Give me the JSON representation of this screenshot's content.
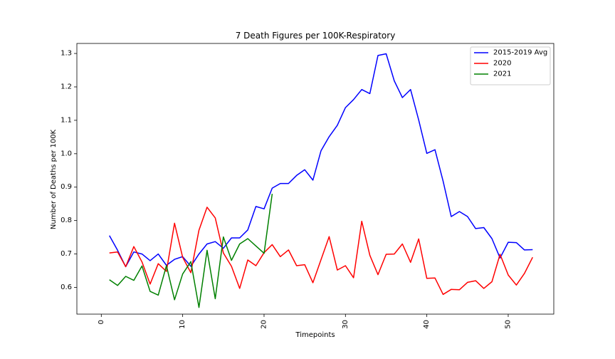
{
  "chart_data": {
    "type": "line",
    "title": "7 Death Figures per 100K-Respiratory",
    "xlabel": "Timepoints",
    "ylabel": "Number of Deaths per 100K",
    "xlim": [
      -3,
      55.6
    ],
    "ylim": [
      0.52,
      1.33
    ],
    "xticks": [
      0,
      10,
      20,
      30,
      40,
      50
    ],
    "xtick_labels": [
      "0",
      "10",
      "20",
      "30",
      "40",
      "50"
    ],
    "yticks": [
      0.6,
      0.7,
      0.8,
      0.9,
      1.0,
      1.1,
      1.2,
      1.3
    ],
    "ytick_labels": [
      "0.6",
      "0.7",
      "0.8",
      "0.9",
      "1.0",
      "1.1",
      "1.2",
      "1.3"
    ],
    "grid": false,
    "legend_position": "top-right",
    "series": [
      {
        "name": "2015-2019 Avg",
        "color": "#0000ff",
        "x": [
          1,
          2,
          3,
          4,
          5,
          6,
          7,
          8,
          9,
          10,
          11,
          12,
          13,
          14,
          15,
          16,
          17,
          18,
          19,
          20,
          21,
          22,
          23,
          24,
          25,
          26,
          27,
          28,
          29,
          30,
          31,
          32,
          33,
          34,
          35,
          36,
          37,
          38,
          39,
          40,
          41,
          42,
          43,
          44,
          45,
          46,
          47,
          48,
          49,
          50,
          51,
          52,
          53
        ],
        "y": [
          0.755,
          0.711,
          0.662,
          0.706,
          0.7,
          0.68,
          0.7,
          0.666,
          0.684,
          0.692,
          0.663,
          0.7,
          0.73,
          0.737,
          0.717,
          0.748,
          0.748,
          0.772,
          0.842,
          0.835,
          0.897,
          0.911,
          0.911,
          0.935,
          0.952,
          0.921,
          1.009,
          1.051,
          1.085,
          1.138,
          1.162,
          1.192,
          1.18,
          1.294,
          1.299,
          1.218,
          1.168,
          1.192,
          1.101,
          1.001,
          1.012,
          0.918,
          0.812,
          0.827,
          0.812,
          0.776,
          0.779,
          0.746,
          0.688,
          0.735,
          0.734,
          0.712,
          0.713
        ]
      },
      {
        "name": "2020",
        "color": "#ff0000",
        "x": [
          1,
          2,
          3,
          4,
          5,
          6,
          7,
          8,
          9,
          10,
          11,
          12,
          13,
          14,
          15,
          16,
          17,
          18,
          19,
          20,
          21,
          22,
          23,
          24,
          25,
          26,
          27,
          28,
          29,
          30,
          31,
          32,
          33,
          34,
          35,
          36,
          37,
          38,
          39,
          40,
          41,
          42,
          43,
          44,
          45,
          46,
          47,
          48,
          49,
          50,
          51,
          52,
          53
        ],
        "y": [
          0.703,
          0.706,
          0.662,
          0.722,
          0.676,
          0.61,
          0.671,
          0.648,
          0.792,
          0.69,
          0.644,
          0.771,
          0.84,
          0.808,
          0.703,
          0.663,
          0.597,
          0.682,
          0.665,
          0.704,
          0.728,
          0.692,
          0.712,
          0.665,
          0.668,
          0.614,
          0.683,
          0.752,
          0.652,
          0.665,
          0.629,
          0.798,
          0.696,
          0.638,
          0.699,
          0.7,
          0.73,
          0.675,
          0.745,
          0.627,
          0.628,
          0.579,
          0.594,
          0.593,
          0.615,
          0.62,
          0.597,
          0.617,
          0.699,
          0.637,
          0.607,
          0.642,
          0.69
        ]
      },
      {
        "name": "2021",
        "color": "#008000",
        "x": [
          1,
          2,
          3,
          4,
          5,
          6,
          7,
          8,
          9,
          10,
          11,
          12,
          13,
          14,
          15,
          16,
          17,
          18,
          19,
          20,
          21
        ],
        "y": [
          0.623,
          0.606,
          0.633,
          0.621,
          0.664,
          0.588,
          0.577,
          0.665,
          0.563,
          0.64,
          0.677,
          0.54,
          0.711,
          0.566,
          0.751,
          0.681,
          0.73,
          0.746,
          0.724,
          0.702,
          0.88
        ]
      }
    ]
  }
}
